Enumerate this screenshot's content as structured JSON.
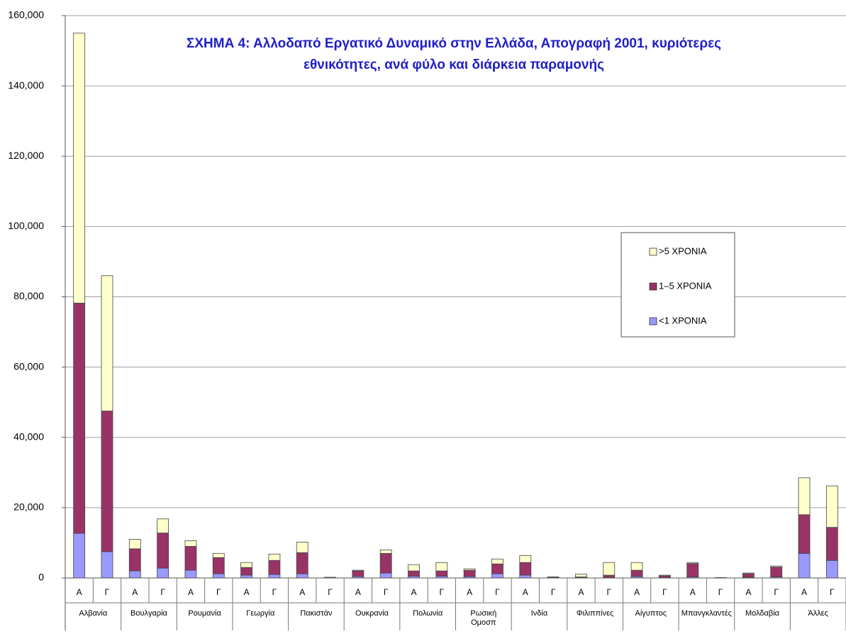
{
  "chart_data": {
    "type": "stacked-bar",
    "title": [
      "ΣΧΗΜΑ 4: Αλλοδαπό Εργατικό Δυναμικό στην Ελλάδα, Απογραφή 2001, κυριότερες",
      "εθνικότητες, ανά φύλο και διάρκεια παραμονής"
    ],
    "groups": [
      "Αλβανία",
      "Βουλγαρία",
      "Ρουμανία",
      "Γεωργία",
      "Πακιστάν",
      "Ουκρανία",
      "Πολωνία",
      [
        "Ρωσική",
        "Ομοσπ"
      ],
      "Ινδία",
      "Φιλιππίνες",
      "Αίγυπτος",
      "Μπανγκλαντές",
      "Μολδαβία",
      "Άλλες"
    ],
    "subcategories": [
      "Α",
      "Γ"
    ],
    "series": [
      {
        "name": "<1 ΧΡΟΝΙΑ",
        "color": "#9999ff",
        "values": [
          12700,
          7500,
          2000,
          2800,
          2200,
          1200,
          800,
          1000,
          1200,
          50,
          400,
          1400,
          500,
          500,
          400,
          1200,
          800,
          50,
          100,
          200,
          400,
          100,
          300,
          20,
          200,
          300,
          7000,
          5000
        ]
      },
      {
        "name": "1–5 ΧΡΟΝΙΑ",
        "color": "#993366",
        "values": [
          65500,
          40000,
          6300,
          10000,
          6800,
          4600,
          2200,
          4000,
          6000,
          100,
          1600,
          5600,
          1500,
          1500,
          1800,
          2800,
          3600,
          200,
          200,
          600,
          1800,
          500,
          3800,
          80,
          1000,
          2800,
          11000,
          9400
        ]
      },
      {
        "name": ">5 ΧΡΟΝΙΑ",
        "color": "#ffffcc",
        "values": [
          76800,
          38500,
          2700,
          4000,
          1600,
          1200,
          1400,
          1800,
          3000,
          50,
          200,
          1000,
          1800,
          2400,
          400,
          1400,
          2000,
          50,
          800,
          3600,
          2200,
          200,
          300,
          20,
          200,
          300,
          10500,
          11800
        ]
      }
    ],
    "ylim": [
      0,
      160000
    ],
    "yticks": [
      {
        "value": 0,
        "label": "0"
      },
      {
        "value": 20000,
        "label": "20,000"
      },
      {
        "value": 40000,
        "label": "40,000"
      },
      {
        "value": 60000,
        "label": "60,000"
      },
      {
        "value": 80000,
        "label": "80,000"
      },
      {
        "value": 100000,
        "label": "100,000"
      },
      {
        "value": 120000,
        "label": "120,000"
      },
      {
        "value": 140000,
        "label": "140,000"
      },
      {
        "value": 160000,
        "label": "160,000"
      }
    ],
    "grid": true,
    "legend": "right"
  }
}
